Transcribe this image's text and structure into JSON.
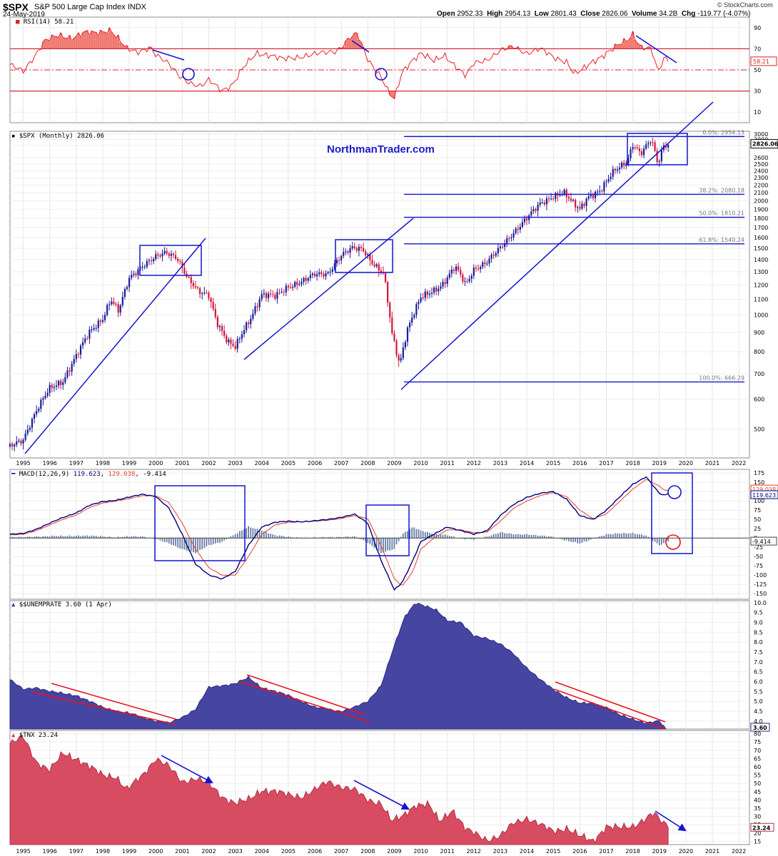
{
  "header": {
    "symbol": "$SPX",
    "name": "S&P 500 Large Cap Index",
    "exchange": "INDX",
    "date": "24-May-2019",
    "open_label": "Open",
    "open": "2952.33",
    "high_label": "High",
    "high": "2954.13",
    "low_label": "Low",
    "low": "2801.43",
    "close_label": "Close",
    "close": "2826.06",
    "volume_label": "Volume",
    "volume": "34.2B",
    "chg_label": "Chg",
    "chg": "-119.77 (-4.07%)",
    "brand": "© StockCharts.com"
  },
  "watermark": "NorthmanTrader.com",
  "colors": {
    "price_up": "#1a1a9c",
    "price_down": "#d2143a",
    "annotation_blue": "#1414d2",
    "rsi_line": "#e8202a",
    "macd_line": "#000080",
    "signal_line": "#e8402a",
    "histogram": "#6a86b4",
    "unemp_fill": "#4645a2",
    "tnx_fill": "#d84c62",
    "trend_red": "#e8141e"
  },
  "chart_data": [
    {
      "type": "line",
      "panel": "rsi",
      "legend": "RSI(14) 58.21",
      "last_value": "58.21",
      "y_ticks": [
        "90",
        "70",
        "50",
        "30",
        "10"
      ],
      "ylim": [
        0,
        100
      ],
      "levels": [
        70,
        50,
        30
      ],
      "series": [
        {
          "x": [
            1994.5,
            1995.0,
            1995.4,
            1995.8,
            1996.3,
            1996.8,
            1997.3,
            1997.8,
            1998.3,
            1998.6,
            1998.9,
            1999.3,
            1999.8,
            2000.0,
            2000.5,
            2000.9,
            2001.3,
            2001.7,
            2002.0,
            2002.5,
            2002.9,
            2003.3,
            2003.8,
            2004.3,
            2004.8,
            2005.3,
            2005.8,
            2006.3,
            2006.8,
            2007.0,
            2007.3,
            2007.6,
            2008.0,
            2008.5,
            2008.8,
            2009.0,
            2009.3,
            2009.7,
            2010.0,
            2010.5,
            2010.9,
            2011.3,
            2011.7,
            2012.0,
            2012.5,
            2013.0,
            2013.5,
            2014.0,
            2014.5,
            2015.0,
            2015.5,
            2015.8,
            2016.1,
            2016.5,
            2017.0,
            2017.5,
            2017.8,
            2018.0,
            2018.3,
            2018.7,
            2018.95,
            2019.2,
            2019.4
          ],
          "values": [
            55,
            48,
            62,
            78,
            82,
            80,
            86,
            84,
            88,
            80,
            70,
            66,
            72,
            65,
            55,
            44,
            38,
            34,
            40,
            31,
            36,
            52,
            66,
            64,
            60,
            62,
            64,
            66,
            68,
            72,
            80,
            84,
            60,
            44,
            28,
            22,
            48,
            60,
            66,
            58,
            64,
            54,
            44,
            56,
            60,
            68,
            72,
            66,
            70,
            62,
            58,
            46,
            50,
            58,
            66,
            74,
            78,
            84,
            72,
            70,
            47,
            62,
            58
          ]
        }
      ]
    },
    {
      "type": "candlestick",
      "panel": "price",
      "legend": "$SPX (Monthly) 2826.06",
      "last_value": "2826.06",
      "scale": "log",
      "ylim": [
        420,
        3050
      ],
      "y_ticks": [
        "3000",
        "2900",
        "2800",
        "2600",
        "2500",
        "2400",
        "2300",
        "2200",
        "2100",
        "2000",
        "1900",
        "1800",
        "1700",
        "1600",
        "1500",
        "1400",
        "1300",
        "1200",
        "1100",
        "1000",
        "900",
        "800",
        "700",
        "600",
        "500"
      ],
      "x_ticks": [
        "1995",
        "1996",
        "1997",
        "1998",
        "1999",
        "2000",
        "2001",
        "2002",
        "2003",
        "2004",
        "2005",
        "2006",
        "2007",
        "2008",
        "2009",
        "2010",
        "2011",
        "2012",
        "2013",
        "2014",
        "2015",
        "2016",
        "2017",
        "2018",
        "2019",
        "2020",
        "2021",
        "2022"
      ],
      "x": [
        1994.5,
        1995.0,
        1995.5,
        1996.0,
        1996.5,
        1997.0,
        1997.5,
        1998.0,
        1998.3,
        1998.6,
        1999.0,
        1999.5,
        2000.0,
        2000.4,
        2000.8,
        2001.2,
        2001.6,
        2002.0,
        2002.3,
        2002.7,
        2003.0,
        2003.2,
        2003.6,
        2004.0,
        2004.5,
        2005.0,
        2005.5,
        2006.0,
        2006.5,
        2007.0,
        2007.4,
        2007.8,
        2008.2,
        2008.6,
        2008.9,
        2009.2,
        2009.5,
        2010.0,
        2010.4,
        2010.8,
        2011.3,
        2011.7,
        2012.0,
        2012.5,
        2013.0,
        2013.5,
        2014.0,
        2014.5,
        2015.0,
        2015.4,
        2015.7,
        2016.0,
        2016.3,
        2016.8,
        2017.3,
        2017.8,
        2018.0,
        2018.3,
        2018.7,
        2018.95,
        2019.15,
        2019.4
      ],
      "close": [
        450,
        470,
        560,
        640,
        670,
        780,
        900,
        980,
        1100,
        1020,
        1250,
        1350,
        1420,
        1460,
        1420,
        1250,
        1150,
        1130,
        960,
        850,
        820,
        880,
        990,
        1130,
        1120,
        1190,
        1220,
        1280,
        1290,
        1430,
        1500,
        1500,
        1360,
        1280,
        900,
        740,
        920,
        1110,
        1150,
        1200,
        1340,
        1200,
        1320,
        1380,
        1500,
        1650,
        1800,
        1960,
        2060,
        2100,
        1980,
        1900,
        2050,
        2130,
        2400,
        2550,
        2820,
        2650,
        2900,
        2500,
        2800,
        2826
      ]
    },
    {
      "type": "line",
      "panel": "macd",
      "legend_label": "MACD(12,26,9)",
      "macd_value": "119.623",
      "signal_value": "129.038",
      "hist_value": "-9.414",
      "y_ticks": [
        "175",
        "150",
        "125",
        "100",
        "75",
        "50",
        "25",
        "0",
        "-25",
        "-50",
        "-75",
        "-100",
        "-125",
        "-150"
      ],
      "ylim": [
        -165,
        185
      ],
      "series": [
        {
          "name": "MACD(12,26,9)",
          "x": [
            1994.5,
            1995.0,
            1995.5,
            1996.0,
            1996.5,
            1997.0,
            1997.5,
            1998.0,
            1998.5,
            1999.0,
            1999.5,
            2000.0,
            2000.5,
            2001.0,
            2001.5,
            2002.0,
            2002.5,
            2003.0,
            2003.5,
            2004.0,
            2004.5,
            2005.0,
            2005.5,
            2006.0,
            2006.5,
            2007.0,
            2007.5,
            2008.0,
            2008.5,
            2009.0,
            2009.3,
            2009.7,
            2010.0,
            2010.5,
            2011.0,
            2011.5,
            2012.0,
            2012.5,
            2013.0,
            2013.5,
            2014.0,
            2014.5,
            2015.0,
            2015.5,
            2016.0,
            2016.5,
            2017.0,
            2017.5,
            2018.0,
            2018.5,
            2019.0,
            2019.2,
            2019.4
          ],
          "values": [
            10,
            12,
            24,
            40,
            55,
            68,
            88,
            98,
            102,
            110,
            118,
            112,
            80,
            10,
            -70,
            -100,
            -110,
            -90,
            -20,
            30,
            42,
            45,
            44,
            46,
            50,
            56,
            64,
            40,
            -60,
            -140,
            -120,
            -60,
            -10,
            10,
            30,
            20,
            10,
            20,
            60,
            90,
            110,
            120,
            125,
            105,
            60,
            50,
            75,
            110,
            145,
            165,
            120,
            115,
            119.6
          ]
        },
        {
          "name": "signal",
          "x": [
            1994.5,
            1995.0,
            1995.5,
            1996.0,
            1996.5,
            1997.0,
            1997.5,
            1998.0,
            1998.5,
            1999.0,
            1999.5,
            2000.0,
            2000.5,
            2001.0,
            2001.5,
            2002.0,
            2002.5,
            2003.0,
            2003.5,
            2004.0,
            2004.5,
            2005.0,
            2005.5,
            2006.0,
            2006.5,
            2007.0,
            2007.5,
            2008.0,
            2008.5,
            2009.0,
            2009.3,
            2009.7,
            2010.0,
            2010.5,
            2011.0,
            2011.5,
            2012.0,
            2012.5,
            2013.0,
            2013.5,
            2014.0,
            2014.5,
            2015.0,
            2015.5,
            2016.0,
            2016.5,
            2017.0,
            2017.5,
            2018.0,
            2018.5,
            2019.0,
            2019.2,
            2019.4
          ],
          "values": [
            8,
            10,
            20,
            35,
            50,
            62,
            82,
            94,
            100,
            106,
            114,
            114,
            95,
            40,
            -30,
            -80,
            -100,
            -100,
            -50,
            10,
            35,
            42,
            44,
            45,
            48,
            53,
            60,
            52,
            -20,
            -110,
            -130,
            -90,
            -30,
            0,
            22,
            22,
            14,
            16,
            45,
            80,
            100,
            114,
            122,
            112,
            75,
            52,
            65,
            98,
            132,
            158,
            140,
            128,
            129
          ]
        },
        {
          "name": "histogram",
          "x": [
            1994.5,
            1995.0,
            1995.5,
            1996.0,
            1996.5,
            1997.0,
            1997.5,
            1998.0,
            1998.5,
            1999.0,
            1999.5,
            2000.0,
            2000.5,
            2001.0,
            2001.5,
            2002.0,
            2002.5,
            2003.0,
            2003.5,
            2004.0,
            2004.5,
            2005.0,
            2005.5,
            2006.0,
            2006.5,
            2007.0,
            2007.5,
            2008.0,
            2008.5,
            2009.0,
            2009.3,
            2009.7,
            2010.0,
            2010.5,
            2011.0,
            2011.5,
            2012.0,
            2012.5,
            2013.0,
            2013.5,
            2014.0,
            2014.5,
            2015.0,
            2015.5,
            2016.0,
            2016.5,
            2017.0,
            2017.5,
            2018.0,
            2018.5,
            2019.0,
            2019.2,
            2019.4
          ],
          "values": [
            2,
            2,
            4,
            5,
            5,
            6,
            6,
            4,
            2,
            4,
            4,
            -2,
            -15,
            -30,
            -40,
            -20,
            -10,
            10,
            30,
            20,
            7,
            3,
            0,
            1,
            2,
            3,
            4,
            -12,
            -40,
            -30,
            10,
            30,
            20,
            10,
            8,
            -2,
            -4,
            4,
            15,
            10,
            10,
            6,
            3,
            -7,
            -15,
            -2,
            10,
            12,
            13,
            7,
            -20,
            -13,
            -9.4
          ]
        }
      ]
    },
    {
      "type": "area",
      "panel": "unemployment",
      "legend": "$$UNEMPRATE 3.60 (1 Apr)",
      "last_value": "3.60",
      "y_ticks": [
        "10.0",
        "9.5",
        "9.0",
        "8.5",
        "8.0",
        "7.5",
        "7.0",
        "6.5",
        "6.0",
        "5.5",
        "5.0",
        "4.5",
        "4.0"
      ],
      "ylim": [
        3.6,
        10.1
      ],
      "series": [
        {
          "x": [
            1994.5,
            1995.0,
            1995.5,
            1996.0,
            1996.5,
            1997.0,
            1997.5,
            1998.0,
            1998.5,
            1999.0,
            1999.5,
            2000.0,
            2000.5,
            2001.0,
            2001.5,
            2002.0,
            2002.5,
            2003.0,
            2003.5,
            2004.0,
            2004.5,
            2005.0,
            2005.5,
            2006.0,
            2006.5,
            2007.0,
            2007.5,
            2008.0,
            2008.5,
            2009.0,
            2009.4,
            2009.8,
            2010.2,
            2010.6,
            2011.0,
            2011.5,
            2012.0,
            2012.5,
            2013.0,
            2013.5,
            2014.0,
            2014.5,
            2015.0,
            2015.5,
            2016.0,
            2016.5,
            2017.0,
            2017.5,
            2018.0,
            2018.5,
            2019.0,
            2019.25
          ],
          "values": [
            6.1,
            5.6,
            5.7,
            5.5,
            5.4,
            5.3,
            5.0,
            4.7,
            4.5,
            4.4,
            4.2,
            4.0,
            3.9,
            4.2,
            4.6,
            5.7,
            5.8,
            5.9,
            6.2,
            5.7,
            5.5,
            5.3,
            5.0,
            4.7,
            4.6,
            4.5,
            4.7,
            5.0,
            5.8,
            7.8,
            9.3,
            10.0,
            9.8,
            9.6,
            9.1,
            9.0,
            8.3,
            8.2,
            7.9,
            7.4,
            6.7,
            6.1,
            5.6,
            5.2,
            4.9,
            4.9,
            4.7,
            4.3,
            4.1,
            3.9,
            4.0,
            3.6
          ]
        }
      ]
    },
    {
      "type": "area",
      "panel": "tnx",
      "legend": "$TNX 23.24",
      "last_value": "23.24",
      "y_ticks": [
        "80",
        "75",
        "70",
        "65",
        "60",
        "55",
        "50",
        "45",
        "40",
        "35",
        "30",
        "25",
        "20",
        "15"
      ],
      "ylim": [
        13,
        82
      ],
      "x_ticks": [
        "1995",
        "1996",
        "1997",
        "1998",
        "1999",
        "2000",
        "2001",
        "2002",
        "2003",
        "2004",
        "2005",
        "2006",
        "2007",
        "2008",
        "2009",
        "2010",
        "2011",
        "2012",
        "2013",
        "2014",
        "2015",
        "2016",
        "2017",
        "2018",
        "2019",
        "2020",
        "2021",
        "2022"
      ],
      "series": [
        {
          "x": [
            1994.5,
            1995.0,
            1995.5,
            1996.0,
            1996.5,
            1997.0,
            1997.5,
            1998.0,
            1998.5,
            1998.9,
            1999.5,
            2000.0,
            2000.5,
            2001.0,
            2001.5,
            2002.0,
            2002.5,
            2003.0,
            2003.5,
            2004.0,
            2004.5,
            2005.0,
            2005.5,
            2006.0,
            2006.5,
            2007.0,
            2007.5,
            2008.0,
            2008.5,
            2008.9,
            2009.3,
            2009.8,
            2010.3,
            2010.7,
            2011.2,
            2011.7,
            2012.0,
            2012.5,
            2013.0,
            2013.5,
            2014.0,
            2014.5,
            2015.0,
            2015.5,
            2016.0,
            2016.5,
            2017.0,
            2017.5,
            2018.0,
            2018.5,
            2018.8,
            2019.0,
            2019.4
          ],
          "values": [
            74,
            78,
            63,
            58,
            68,
            65,
            60,
            55,
            54,
            46,
            55,
            65,
            60,
            51,
            53,
            50,
            42,
            38,
            40,
            46,
            45,
            43,
            42,
            46,
            51,
            48,
            46,
            40,
            38,
            27,
            30,
            37,
            37,
            27,
            34,
            22,
            20,
            16,
            18,
            26,
            29,
            25,
            21,
            23,
            18,
            15,
            24,
            23,
            24,
            29,
            32,
            28,
            23.24
          ]
        }
      ]
    }
  ],
  "fibonacci": [
    {
      "label": "0.0%: 2954.13",
      "value": 2954.13
    },
    {
      "label": "38.2%: 2080.18",
      "value": 2080.18
    },
    {
      "label": "50.0%: 1810.21",
      "value": 1810.21
    },
    {
      "label": "61.8%: 1540.24",
      "value": 1540.24
    },
    {
      "label": "100.0%: 666.29",
      "value": 666.29
    }
  ]
}
